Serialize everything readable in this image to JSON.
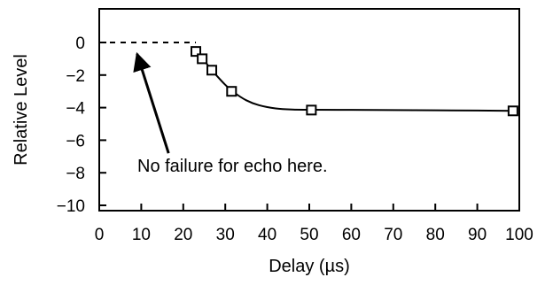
{
  "chart_data": {
    "type": "line",
    "title": "",
    "xlabel": "Delay (µs)",
    "ylabel": "Relative Level",
    "xlim": [
      0,
      100
    ],
    "ylim": [
      -10,
      2
    ],
    "x_ticks": [
      0,
      10,
      20,
      30,
      40,
      50,
      60,
      70,
      80,
      90,
      100
    ],
    "x_tick_labels": [
      "0",
      "10",
      "20",
      "30",
      "40",
      "50",
      "60",
      "70",
      "80",
      "90",
      "100"
    ],
    "y_ticks": [
      0,
      -2,
      -4,
      -6,
      -8,
      -10
    ],
    "y_tick_labels": [
      "0",
      "−2",
      "−4",
      "−6",
      "−8",
      "−10"
    ],
    "grid": false,
    "legend": false,
    "series": [
      {
        "values": [
          {
            "x": 23.0,
            "y": -0.55
          },
          {
            "x": 24.5,
            "y": -1.0
          },
          {
            "x": 26.8,
            "y": -1.7
          },
          {
            "x": 31.5,
            "y": -3.0
          },
          {
            "x": 50.5,
            "y": -4.15
          },
          {
            "x": 98.5,
            "y": -4.2
          }
        ],
        "marker": "square",
        "color": "#000000"
      }
    ],
    "fit_curve": [
      {
        "x": 23.0,
        "y": -0.45
      },
      {
        "x": 24.5,
        "y": -0.9
      },
      {
        "x": 26.0,
        "y": -1.45
      },
      {
        "x": 28.0,
        "y": -2.05
      },
      {
        "x": 30.0,
        "y": -2.6
      },
      {
        "x": 32.0,
        "y": -3.05
      },
      {
        "x": 35.0,
        "y": -3.55
      },
      {
        "x": 38.0,
        "y": -3.85
      },
      {
        "x": 42.0,
        "y": -4.05
      },
      {
        "x": 46.0,
        "y": -4.12
      },
      {
        "x": 50.5,
        "y": -4.13
      },
      {
        "x": 60.0,
        "y": -4.14
      },
      {
        "x": 75.0,
        "y": -4.16
      },
      {
        "x": 90.0,
        "y": -4.18
      },
      {
        "x": 98.5,
        "y": -4.2
      }
    ],
    "dashed_baseline": {
      "x_start": 0,
      "x_end": 23,
      "y": 0
    },
    "annotation": {
      "text": "No failure for echo here.",
      "arrow_from": {
        "x": 16.5,
        "y": -6.8
      },
      "arrow_to": {
        "x": 9.0,
        "y": -0.7
      }
    }
  }
}
